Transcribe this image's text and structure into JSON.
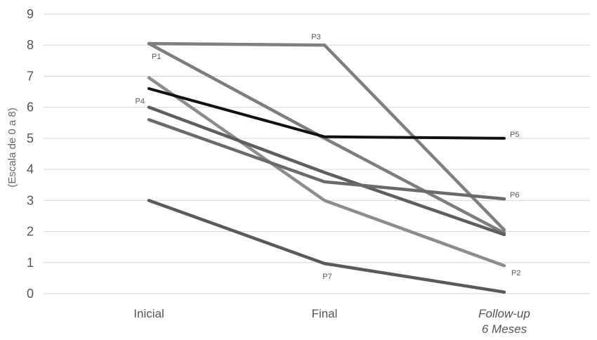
{
  "chart_data": {
    "type": "line",
    "ylabel": "(Escala de 0 a 8)",
    "ylim": [
      0,
      9
    ],
    "yticks": [
      "0",
      "1",
      "2",
      "3",
      "4",
      "5",
      "6",
      "7",
      "8",
      "9"
    ],
    "categories": [
      {
        "line1": "Inicial",
        "line2": "",
        "italic": false
      },
      {
        "line1": "Final",
        "line2": "",
        "italic": false
      },
      {
        "line1": "Follow-up",
        "line2": "6 Meses",
        "italic": true
      }
    ],
    "grid": true,
    "series": [
      {
        "name": "P1",
        "values": [
          8.05,
          5.0,
          1.95
        ],
        "color": "#7d7d7d",
        "label_at": 0,
        "label_pos": "below"
      },
      {
        "name": "P2",
        "values": [
          6.95,
          3.0,
          0.9
        ],
        "color": "#8c8c8c",
        "label_at": 2,
        "label_pos": "below-right"
      },
      {
        "name": "P3",
        "values": [
          8.05,
          8.0,
          2.05
        ],
        "color": "#7f7f7f",
        "label_at": 1,
        "label_pos": "above-left"
      },
      {
        "name": "P4",
        "values": [
          6.0,
          3.9,
          1.9
        ],
        "color": "#5e5e5e",
        "label_at": 0,
        "label_pos": "left"
      },
      {
        "name": "P5",
        "values": [
          6.6,
          5.05,
          5.0
        ],
        "color": "#111111",
        "label_at": 2,
        "label_pos": "right"
      },
      {
        "name": "P6",
        "values": [
          5.6,
          3.6,
          3.05
        ],
        "color": "#6a6a6a",
        "label_at": 2,
        "label_pos": "right"
      },
      {
        "name": "P7",
        "values": [
          3.0,
          0.97,
          0.05
        ],
        "color": "#5a5a5a",
        "label_at": 1,
        "label_pos": "below"
      }
    ]
  }
}
